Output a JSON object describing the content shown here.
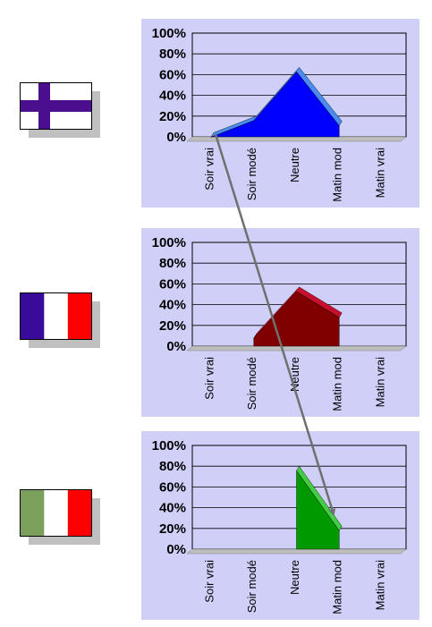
{
  "flags": [
    {
      "name": "flag-finland",
      "colors": [
        "#ffffff",
        "#4a0e8f"
      ]
    },
    {
      "name": "flag-france",
      "colors": [
        "#3a0a9a",
        "#ffffff",
        "#ff0000"
      ]
    },
    {
      "name": "flag-italy",
      "colors": [
        "#7ba05b",
        "#ffffff",
        "#ff0000"
      ]
    }
  ],
  "chart_data": [
    {
      "type": "area",
      "categories": [
        "Soir vrai",
        "Soir modé",
        "Neutre",
        "Matin mod",
        "Matin vrai"
      ],
      "values": [
        4,
        20,
        67,
        15,
        null
      ],
      "ylim": [
        0,
        100
      ],
      "yticks": [
        "0%",
        "20%",
        "40%",
        "60%",
        "80%",
        "100%"
      ],
      "grid": true,
      "color": "#0000ff",
      "top_color": "#4a8cf0"
    },
    {
      "type": "area",
      "categories": [
        "Soir vrai",
        "Soir modé",
        "Neutre",
        "Matin mod",
        "Matin vrai"
      ],
      "values": [
        null,
        12,
        57,
        32,
        null
      ],
      "ylim": [
        0,
        100
      ],
      "yticks": [
        "0%",
        "20%",
        "40%",
        "60%",
        "80%",
        "100%"
      ],
      "grid": true,
      "color": "#800000",
      "top_color": "#c8102e"
    },
    {
      "type": "area",
      "categories": [
        "Soir vrai",
        "Soir modé",
        "Neutre",
        "Matin mod",
        "Matin vrai"
      ],
      "values": [
        null,
        null,
        80,
        22,
        null
      ],
      "ylim": [
        0,
        100
      ],
      "yticks": [
        "0%",
        "20%",
        "40%",
        "60%",
        "80%",
        "100%"
      ],
      "grid": true,
      "color": "#009900",
      "top_color": "#44cc44"
    }
  ],
  "arrow_color": "#707070"
}
